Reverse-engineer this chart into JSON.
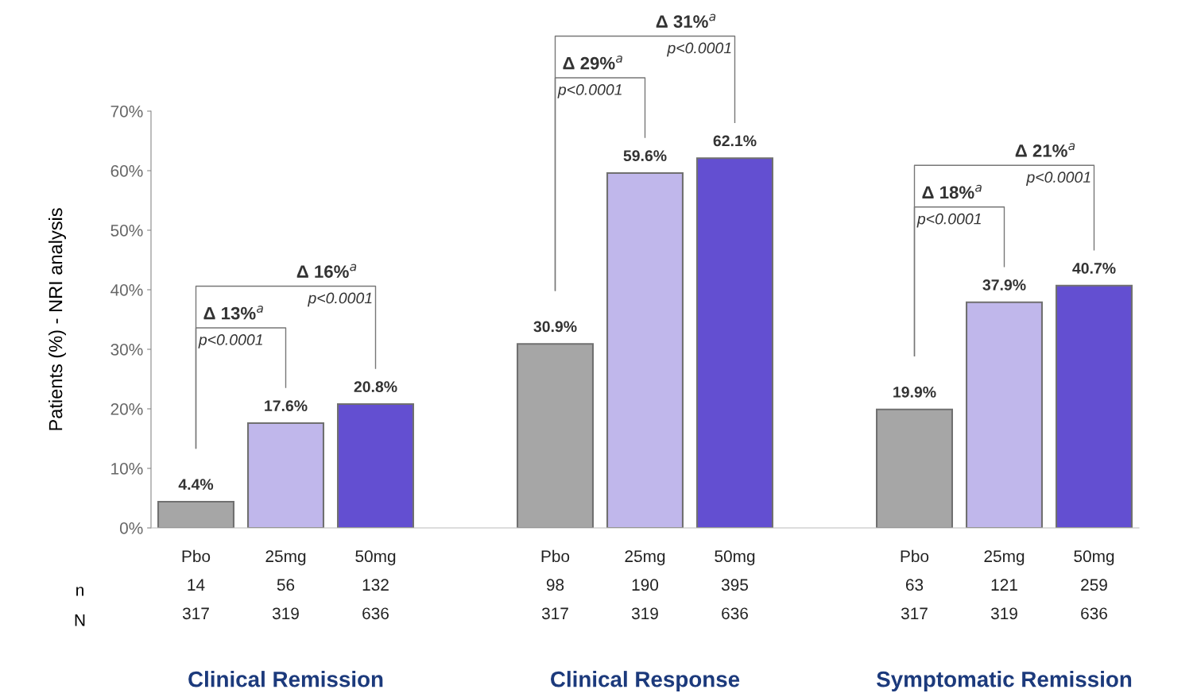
{
  "chart_data": {
    "type": "bar",
    "categories": [
      "Pbo\n14\n317",
      "25mg\n56\n319",
      "50mg\n132\n636",
      null,
      "Pbo\n98\n317",
      "25mg\n190\n319",
      "50mg\n395\n636",
      null,
      "Pbo\n63\n317",
      "25mg\n121\n319",
      "50mg\n259\n636"
    ],
    "values": [
      4.4,
      17.6,
      20.8,
      null,
      30.9,
      59.6,
      62.1,
      null,
      19.9,
      37.9,
      40.7
    ],
    "colors": [
      "#a6a6a6",
      "#c0b7eb",
      "#634fd1",
      null,
      "#a6a6a6",
      "#c0b7eb",
      "#634fd1",
      null,
      "#a6a6a6",
      "#c0b7eb",
      "#634fd1"
    ],
    "value_labels": [
      "4.4%",
      "17.6%",
      "20.8%",
      null,
      "30.9%",
      "59.6%",
      "62.1%",
      null,
      "19.9%",
      "37.9%",
      "40.7%"
    ],
    "ylabel": "Patients (%) - NRI analysis",
    "ylim": [
      0,
      70
    ],
    "yticks": [
      {
        "value": 0,
        "label": "0%"
      },
      {
        "value": 10,
        "label": "10%"
      },
      {
        "value": 20,
        "label": "20%"
      },
      {
        "value": 30,
        "label": "30%"
      },
      {
        "value": 40,
        "label": "40%"
      },
      {
        "value": 50,
        "label": "50%"
      },
      {
        "value": 60,
        "label": "60%"
      },
      {
        "value": 70,
        "label": "70%"
      }
    ],
    "grid": false,
    "legend": false,
    "annotations": [
      "n",
      "N",
      "Clinical Remission",
      "Clinical Response",
      "Symptomatic Remission",
      "Δ 13%$^{a}$",
      "p<0.0001",
      "Δ 16%$^{a}$",
      "p<0.0001",
      "Δ 29%$^{a}$",
      "p<0.0001",
      "Δ 31%$^{a}$",
      "p<0.0001",
      "Δ 18%$^{a}$",
      "p<0.0001",
      "Δ 21%$^{a}$",
      "p<0.0001"
    ]
  }
}
